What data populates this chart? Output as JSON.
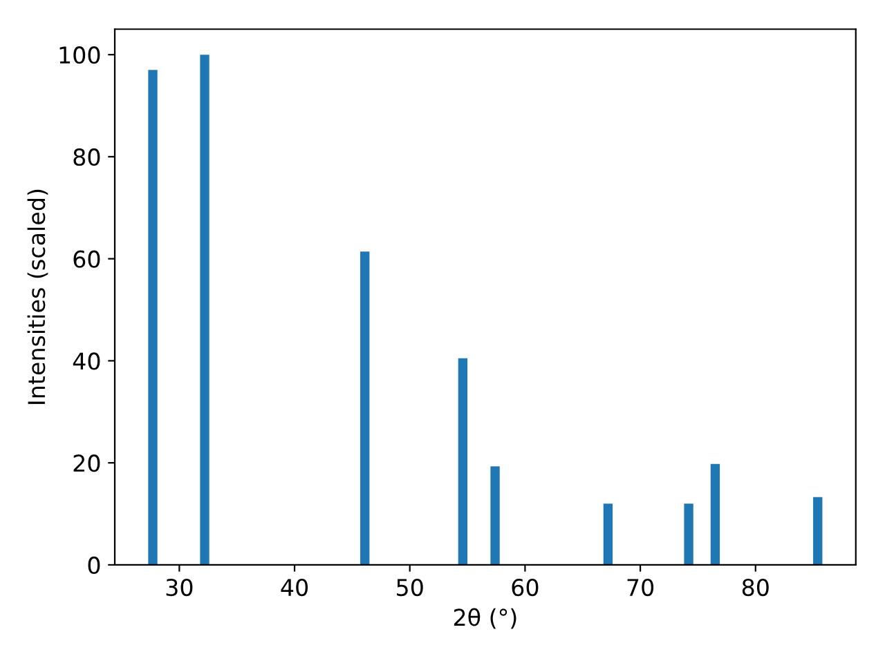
{
  "chart_data": {
    "type": "bar",
    "xlabel": "2θ (°)",
    "ylabel": "Intensities (scaled)",
    "x": [
      27.7,
      32.2,
      46.1,
      54.6,
      57.4,
      67.2,
      74.2,
      76.5,
      85.4
    ],
    "series": [
      {
        "color": "#1f77b4",
        "values": [
          97,
          100,
          61.4,
          40.5,
          19.3,
          12.0,
          12.0,
          19.8,
          13.3
        ]
      }
    ],
    "xlim": [
      24.4,
      88.7
    ],
    "xticks": [
      30,
      40,
      50,
      60,
      70,
      80
    ],
    "ylim": [
      0,
      105
    ],
    "yticks": [
      0,
      20,
      40,
      60,
      80,
      100
    ],
    "grid": false,
    "legend": false
  }
}
